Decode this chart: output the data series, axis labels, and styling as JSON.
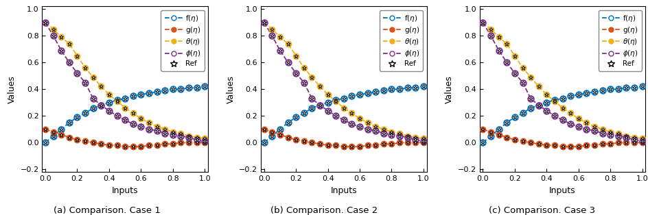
{
  "titles": [
    "(a) Comparison. Case 1",
    "(b) Comparison. Case 2",
    "(c) Comparison. Case 3"
  ],
  "xlabel": "Inputs",
  "ylabel": "Values",
  "xlim": [
    -0.02,
    1.02
  ],
  "ylim": [
    -0.22,
    1.02
  ],
  "yticks": [
    -0.2,
    0.0,
    0.2,
    0.4,
    0.6,
    0.8,
    1.0
  ],
  "xticks": [
    0.0,
    0.2,
    0.4,
    0.6,
    0.8,
    1.0
  ],
  "colors": {
    "f": "#0072BD",
    "g": "#D95319",
    "theta": "#EDB120",
    "phi": "#7E2F8E"
  },
  "eta_pts": [
    0.0,
    0.05,
    0.1,
    0.15,
    0.2,
    0.25,
    0.3,
    0.35,
    0.4,
    0.45,
    0.5,
    0.55,
    0.6,
    0.65,
    0.7,
    0.75,
    0.8,
    0.85,
    0.9,
    0.95,
    1.0
  ],
  "cases": [
    {
      "f": [
        0.0,
        0.05,
        0.1,
        0.15,
        0.19,
        0.22,
        0.26,
        0.28,
        0.3,
        0.32,
        0.33,
        0.35,
        0.36,
        0.37,
        0.38,
        0.39,
        0.4,
        0.4,
        0.41,
        0.41,
        0.42
      ],
      "g": [
        0.1,
        0.08,
        0.06,
        0.04,
        0.02,
        0.01,
        0.0,
        -0.01,
        -0.02,
        -0.02,
        -0.03,
        -0.03,
        -0.03,
        -0.02,
        -0.02,
        -0.01,
        -0.01,
        0.0,
        0.0,
        0.0,
        0.0
      ],
      "theta": [
        0.9,
        0.85,
        0.79,
        0.74,
        0.65,
        0.56,
        0.49,
        0.42,
        0.36,
        0.31,
        0.26,
        0.22,
        0.18,
        0.15,
        0.12,
        0.1,
        0.08,
        0.07,
        0.05,
        0.04,
        0.03
      ],
      "phi": [
        0.9,
        0.8,
        0.69,
        0.6,
        0.52,
        0.45,
        0.33,
        0.28,
        0.24,
        0.2,
        0.17,
        0.14,
        0.12,
        0.1,
        0.09,
        0.07,
        0.06,
        0.05,
        0.04,
        0.02,
        0.01
      ]
    },
    {
      "f": [
        0.0,
        0.05,
        0.1,
        0.15,
        0.19,
        0.22,
        0.26,
        0.28,
        0.3,
        0.32,
        0.33,
        0.35,
        0.36,
        0.37,
        0.38,
        0.39,
        0.4,
        0.4,
        0.41,
        0.41,
        0.42
      ],
      "g": [
        0.1,
        0.08,
        0.06,
        0.04,
        0.02,
        0.01,
        0.0,
        -0.01,
        -0.02,
        -0.02,
        -0.03,
        -0.03,
        -0.03,
        -0.02,
        -0.02,
        -0.01,
        -0.01,
        0.0,
        0.0,
        0.0,
        0.0
      ],
      "theta": [
        0.9,
        0.85,
        0.79,
        0.74,
        0.65,
        0.56,
        0.49,
        0.42,
        0.36,
        0.31,
        0.26,
        0.22,
        0.18,
        0.15,
        0.12,
        0.1,
        0.08,
        0.07,
        0.05,
        0.04,
        0.03
      ],
      "phi": [
        0.9,
        0.8,
        0.69,
        0.6,
        0.52,
        0.45,
        0.33,
        0.28,
        0.24,
        0.2,
        0.17,
        0.14,
        0.12,
        0.1,
        0.09,
        0.07,
        0.06,
        0.05,
        0.04,
        0.02,
        0.01
      ]
    },
    {
      "f": [
        0.0,
        0.05,
        0.1,
        0.15,
        0.19,
        0.22,
        0.26,
        0.28,
        0.3,
        0.32,
        0.33,
        0.35,
        0.36,
        0.37,
        0.38,
        0.39,
        0.4,
        0.4,
        0.41,
        0.41,
        0.42
      ],
      "g": [
        0.1,
        0.08,
        0.06,
        0.04,
        0.02,
        0.01,
        0.0,
        -0.01,
        -0.02,
        -0.02,
        -0.03,
        -0.03,
        -0.03,
        -0.02,
        -0.02,
        -0.01,
        -0.01,
        0.0,
        0.0,
        0.0,
        0.0
      ],
      "theta": [
        0.9,
        0.85,
        0.79,
        0.74,
        0.65,
        0.56,
        0.49,
        0.42,
        0.36,
        0.31,
        0.26,
        0.22,
        0.18,
        0.15,
        0.12,
        0.1,
        0.08,
        0.07,
        0.05,
        0.04,
        0.03
      ],
      "phi": [
        0.9,
        0.8,
        0.69,
        0.6,
        0.52,
        0.45,
        0.33,
        0.28,
        0.24,
        0.2,
        0.17,
        0.14,
        0.12,
        0.1,
        0.09,
        0.07,
        0.06,
        0.05,
        0.04,
        0.02,
        0.01
      ]
    }
  ]
}
